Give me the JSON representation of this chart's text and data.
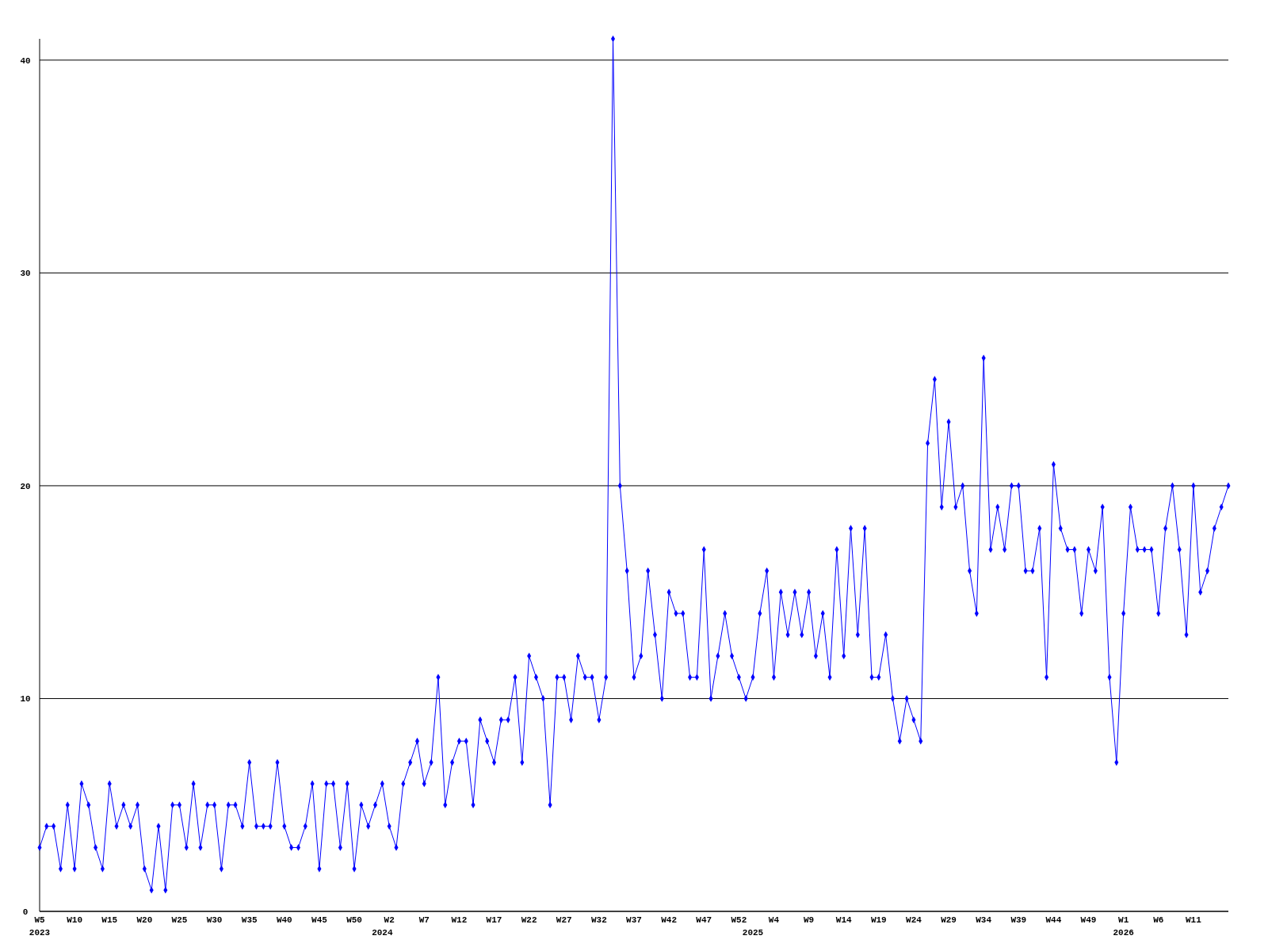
{
  "chart_data": {
    "type": "line",
    "categories": [
      "W5\n2023",
      null,
      null,
      null,
      null,
      "W10",
      null,
      null,
      null,
      null,
      "W15",
      null,
      null,
      null,
      null,
      "W20",
      null,
      null,
      null,
      null,
      "W25",
      null,
      null,
      null,
      null,
      "W30",
      null,
      null,
      null,
      null,
      "W35",
      null,
      null,
      null,
      null,
      "W40",
      null,
      null,
      null,
      null,
      "W45",
      null,
      null,
      null,
      null,
      "W50",
      null,
      null,
      null,
      "\n2024",
      "W2",
      null,
      null,
      null,
      null,
      "W7",
      null,
      null,
      null,
      null,
      "W12",
      null,
      null,
      null,
      null,
      "W17",
      null,
      null,
      null,
      null,
      "W22",
      null,
      null,
      null,
      null,
      "W27",
      null,
      null,
      null,
      null,
      "W32",
      null,
      null,
      null,
      null,
      "W37",
      null,
      null,
      null,
      null,
      "W42",
      null,
      null,
      null,
      null,
      "W47",
      null,
      null,
      null,
      null,
      "W52",
      null,
      "\n2025",
      null,
      null,
      "W4",
      null,
      null,
      null,
      null,
      "W9",
      null,
      null,
      null,
      null,
      "W14",
      null,
      null,
      null,
      null,
      "W19",
      null,
      null,
      null,
      null,
      "W24",
      null,
      null,
      null,
      null,
      "W29",
      null,
      null,
      null,
      null,
      "W34",
      null,
      null,
      null,
      null,
      "W39",
      null,
      null,
      null,
      null,
      "W44",
      null,
      null,
      null,
      null,
      "W49",
      null,
      null,
      null,
      null,
      "W1\n2026",
      null,
      null,
      null,
      null,
      "W6",
      null,
      null,
      null,
      null,
      "W11",
      null,
      null,
      null,
      null,
      null
    ],
    "values": [
      3,
      4,
      4,
      2,
      5,
      2,
      6,
      5,
      3,
      2,
      6,
      4,
      5,
      4,
      5,
      2,
      1,
      4,
      1,
      5,
      5,
      3,
      6,
      3,
      5,
      5,
      2,
      5,
      5,
      4,
      7,
      4,
      4,
      4,
      7,
      4,
      3,
      3,
      4,
      6,
      2,
      6,
      6,
      3,
      6,
      2,
      5,
      4,
      5,
      6,
      4,
      3,
      6,
      7,
      8,
      6,
      7,
      11,
      5,
      7,
      8,
      8,
      5,
      9,
      8,
      7,
      9,
      9,
      11,
      7,
      12,
      11,
      10,
      5,
      11,
      11,
      9,
      12,
      11,
      11,
      9,
      11,
      41,
      20,
      16,
      11,
      12,
      16,
      13,
      10,
      15,
      14,
      14,
      11,
      11,
      17,
      10,
      12,
      14,
      12,
      11,
      10,
      11,
      14,
      16,
      11,
      15,
      13,
      15,
      13,
      15,
      12,
      14,
      11,
      17,
      12,
      18,
      13,
      18,
      11,
      11,
      13,
      10,
      8,
      10,
      9,
      8,
      22,
      25,
      19,
      23,
      19,
      20,
      16,
      14,
      26,
      17,
      19,
      17,
      20,
      20,
      16,
      16,
      18,
      11,
      21,
      18,
      17,
      17,
      14,
      17,
      16,
      19,
      11,
      7,
      14,
      19,
      17,
      17,
      17,
      14,
      18,
      20,
      17,
      13,
      20,
      15,
      16,
      18,
      19,
      20
    ],
    "color": "#0000ff",
    "ylim": [
      0,
      41
    ],
    "yticks": [
      0,
      10,
      20,
      30,
      40
    ],
    "grid": "y",
    "marker": "diamond"
  }
}
